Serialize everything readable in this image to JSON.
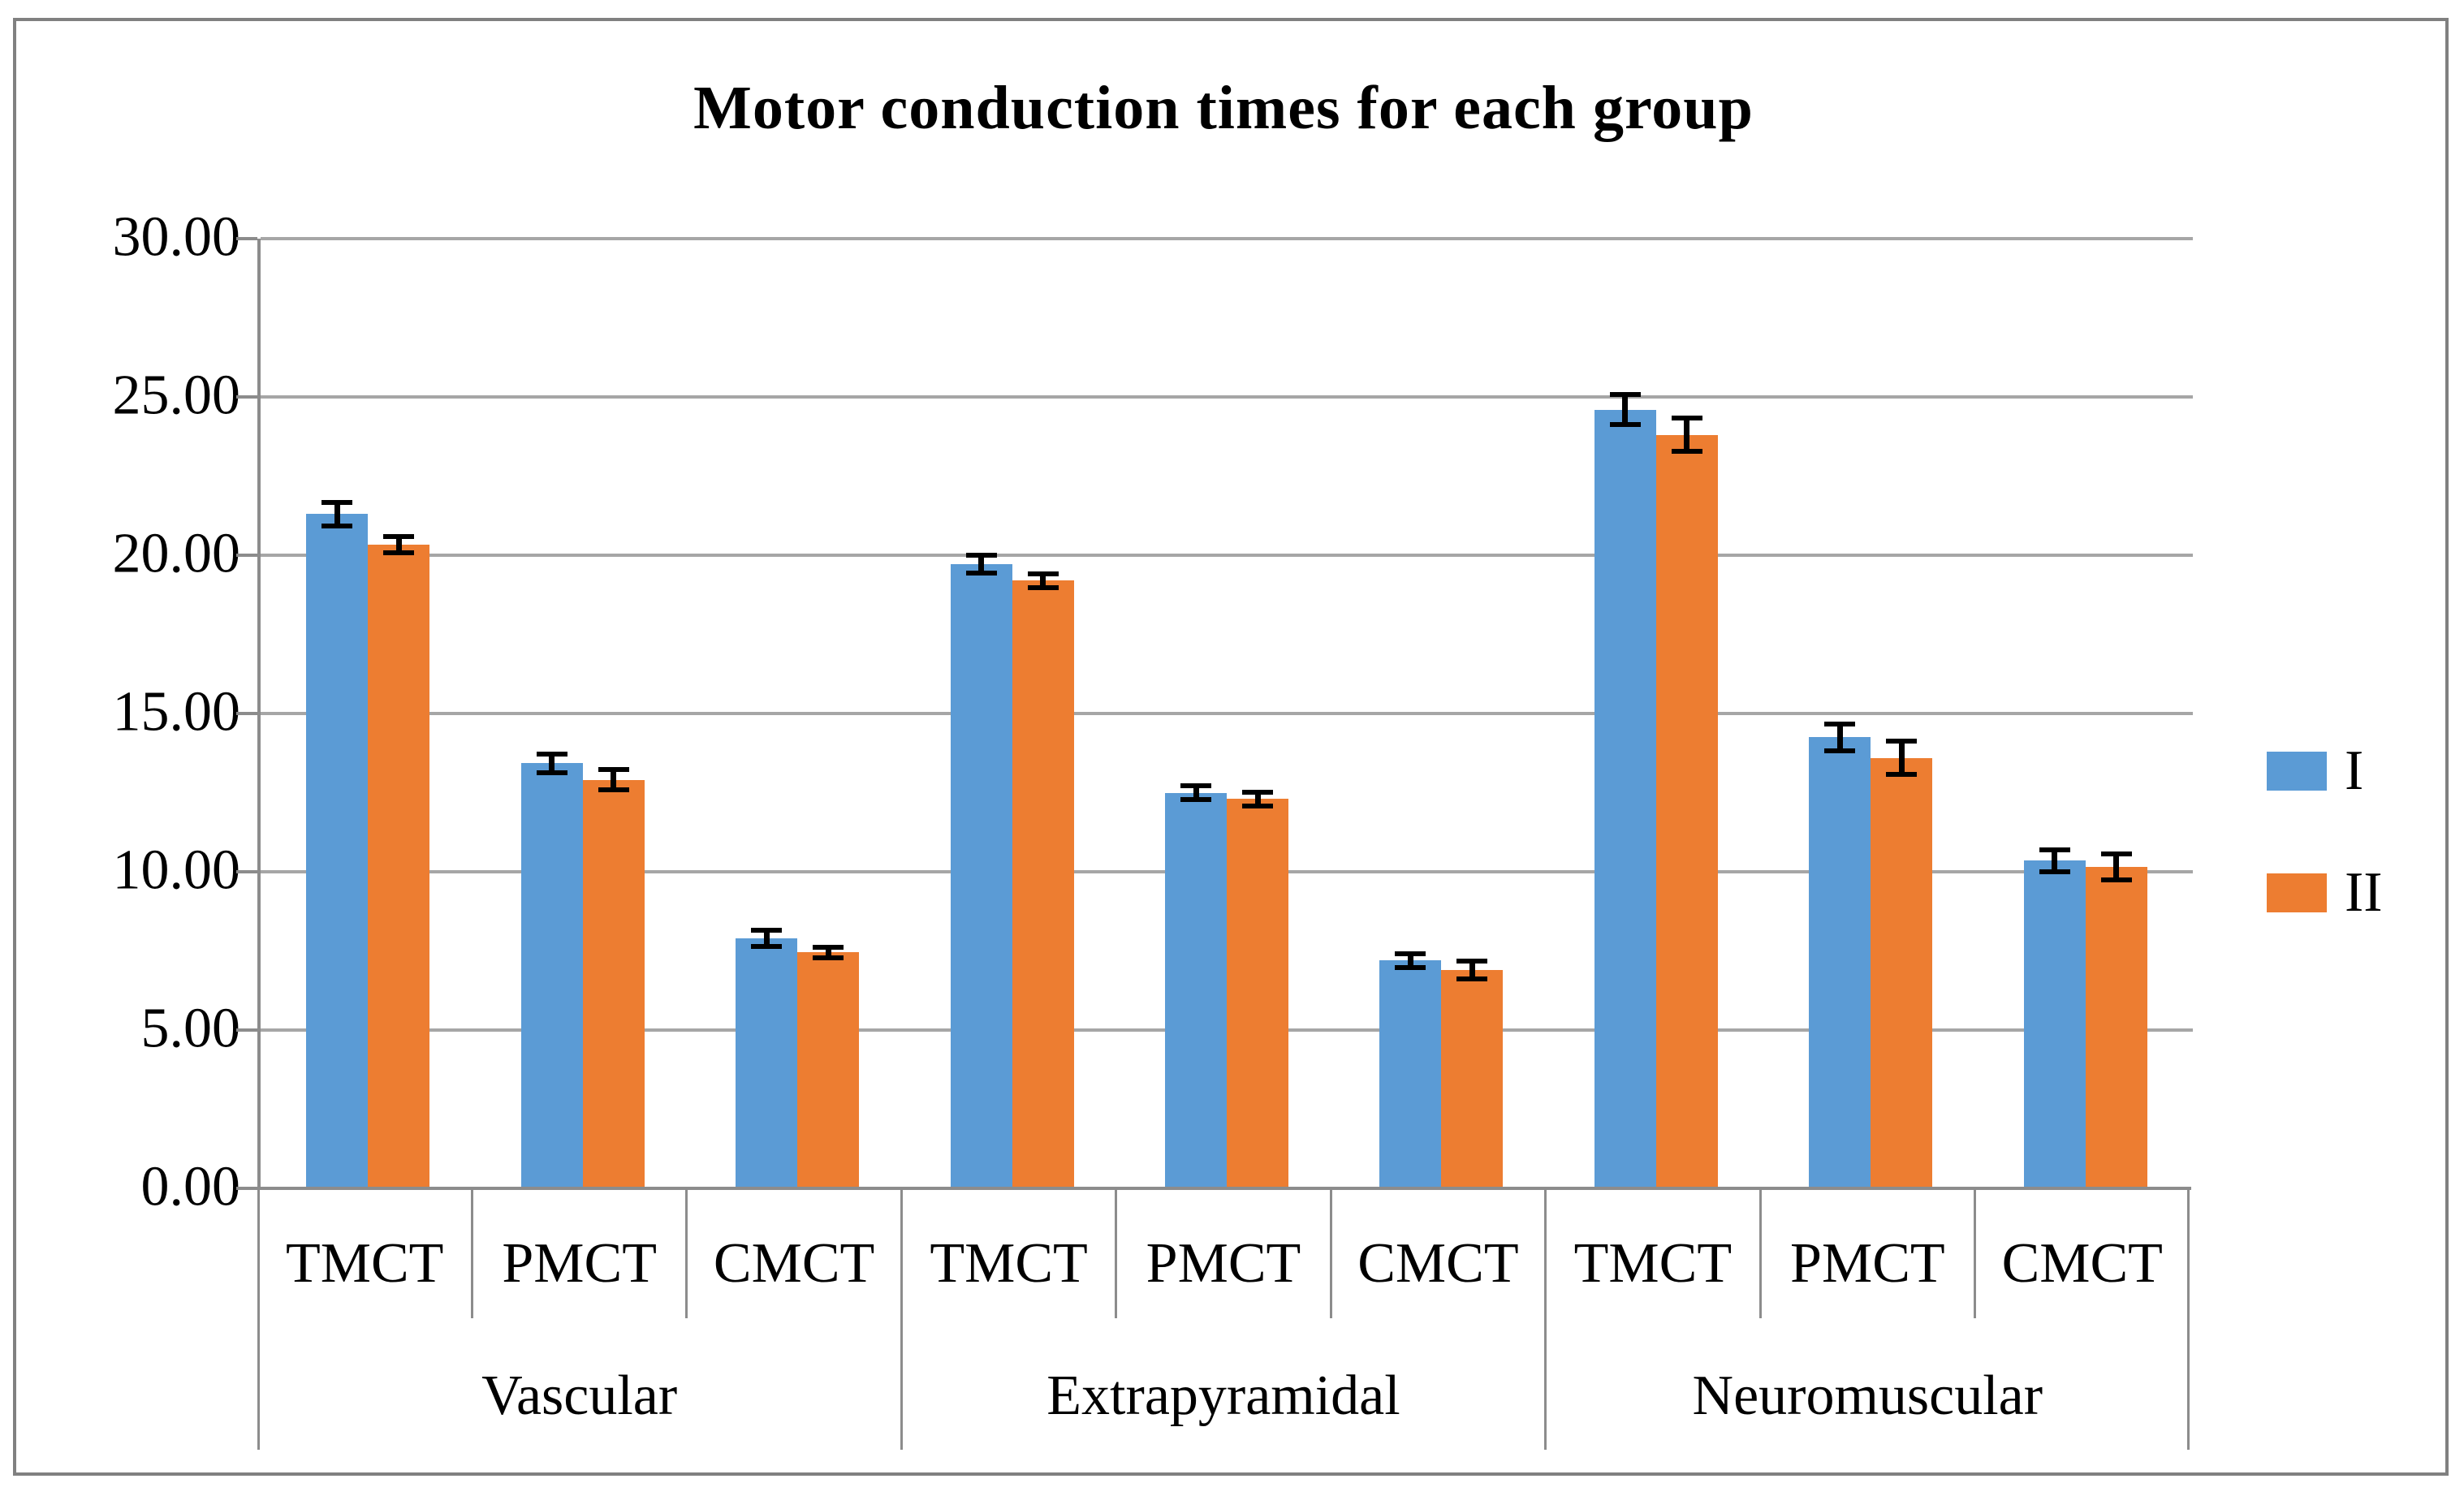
{
  "chart_data": {
    "type": "bar",
    "title": "Motor conduction times for each group",
    "groups": [
      "Vascular",
      "Extrapyramidal",
      "Neuromuscular"
    ],
    "subcategories": [
      "TMCT",
      "PMCT",
      "CMCT"
    ],
    "series": [
      {
        "name": "I",
        "color": "#5B9BD5",
        "values": [
          21.3,
          13.43,
          7.9,
          19.72,
          12.5,
          7.2,
          24.6,
          14.25,
          10.35
        ],
        "errors": [
          0.45,
          0.37,
          0.33,
          0.36,
          0.3,
          0.3,
          0.55,
          0.5,
          0.42
        ]
      },
      {
        "name": "II",
        "color": "#ED7D31",
        "values": [
          20.33,
          12.9,
          7.45,
          19.2,
          12.3,
          6.9,
          23.8,
          13.6,
          10.15
        ],
        "errors": [
          0.33,
          0.4,
          0.25,
          0.3,
          0.3,
          0.35,
          0.6,
          0.6,
          0.48
        ]
      }
    ],
    "y_axis": {
      "min": 0,
      "max": 30,
      "step": 5,
      "tick_labels": [
        "0.00",
        "5.00",
        "10.00",
        "15.00",
        "20.00",
        "25.00",
        "30.00"
      ]
    },
    "legend": {
      "position": "right",
      "entries": [
        "I",
        "II"
      ]
    },
    "styles": {
      "background": "#FFFFFF",
      "figure_border_color": "#808080",
      "gridline_color": "#A6A6A6",
      "axis_color": "#8C8C8C",
      "error_bar_color": "#000000",
      "series_colors": [
        "#5B9BD5",
        "#ED7D31"
      ]
    }
  }
}
